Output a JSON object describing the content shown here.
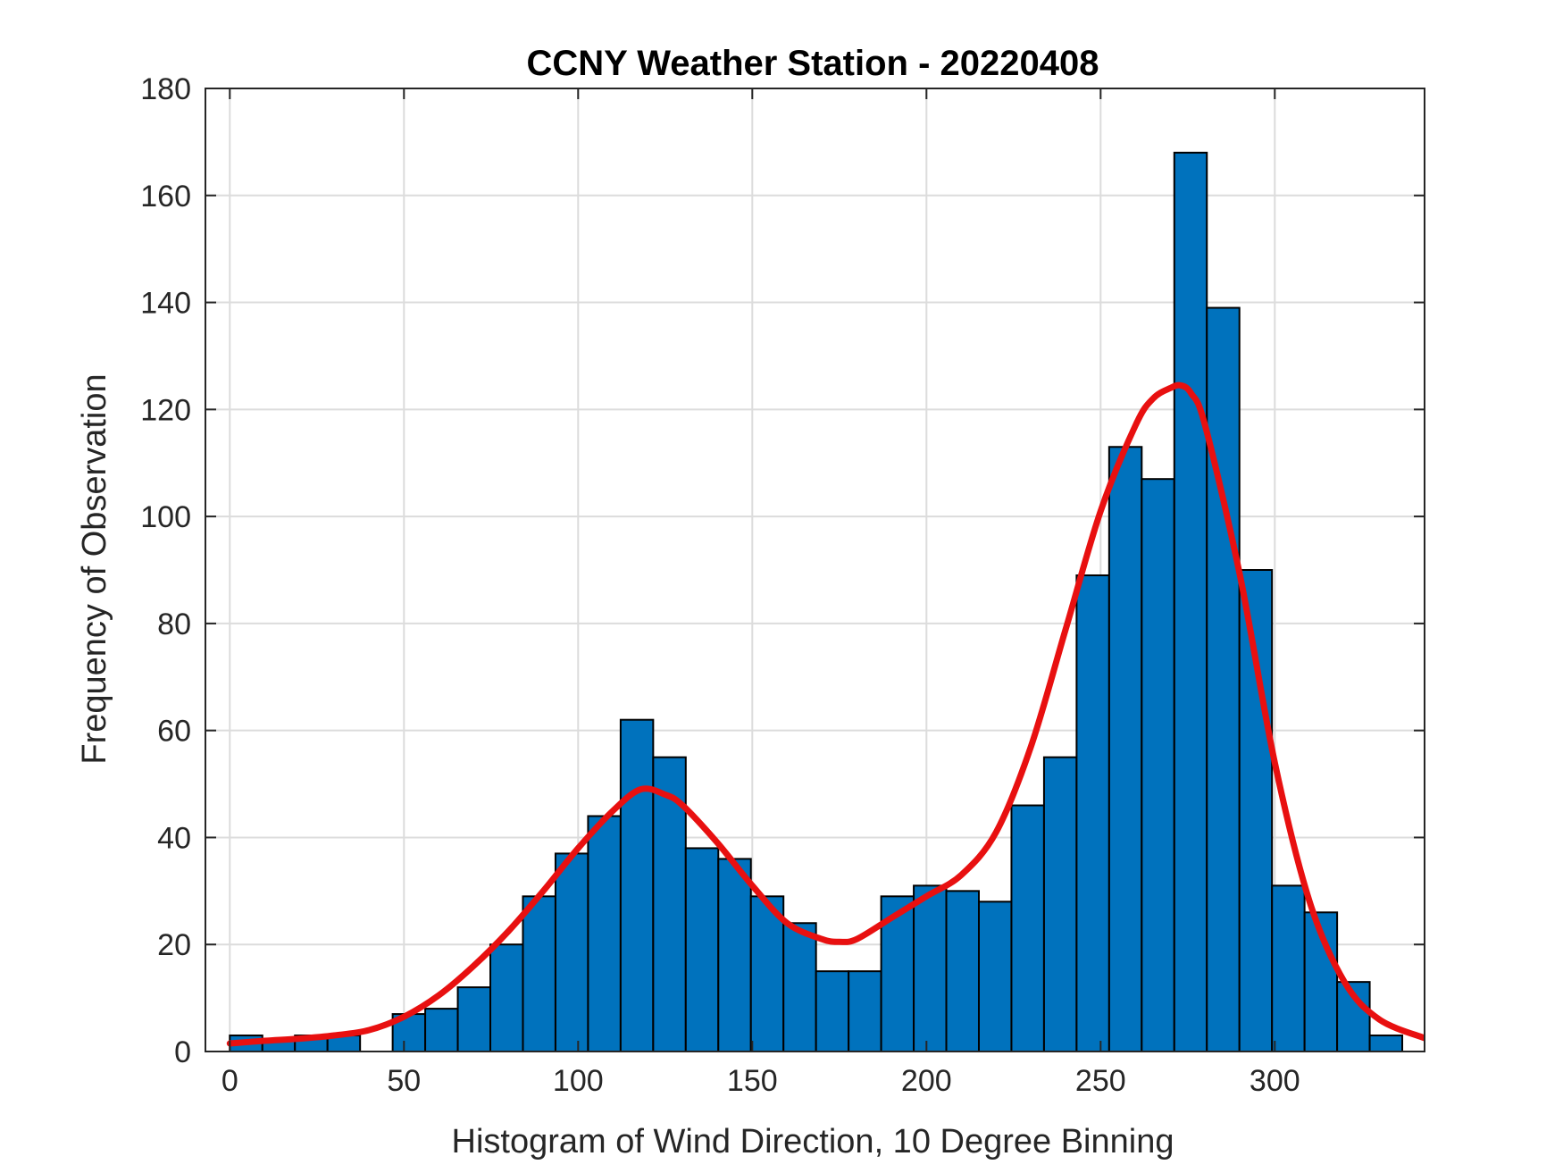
{
  "chart_data": {
    "type": "bar",
    "title": "CCNY Weather Station - 20220408",
    "xlabel": "Histogram of Wind Direction, 10 Degree Binning",
    "ylabel": "Frequency of Observation",
    "xlim": [
      -7,
      343
    ],
    "ylim": [
      0,
      180
    ],
    "xticks": [
      0,
      50,
      100,
      150,
      200,
      250,
      300
    ],
    "yticks": [
      0,
      20,
      40,
      60,
      80,
      100,
      120,
      140,
      160,
      180
    ],
    "grid": true,
    "bin_width": 9.35,
    "bins": [
      {
        "left": 0.0,
        "value": 3
      },
      {
        "left": 9.35,
        "value": 2
      },
      {
        "left": 18.7,
        "value": 3
      },
      {
        "left": 28.05,
        "value": 3
      },
      {
        "left": 37.4,
        "value": 0
      },
      {
        "left": 46.75,
        "value": 7
      },
      {
        "left": 56.1,
        "value": 8
      },
      {
        "left": 65.45,
        "value": 12
      },
      {
        "left": 74.8,
        "value": 20
      },
      {
        "left": 84.15,
        "value": 29
      },
      {
        "left": 93.5,
        "value": 37
      },
      {
        "left": 102.85,
        "value": 44
      },
      {
        "left": 112.2,
        "value": 62
      },
      {
        "left": 121.55,
        "value": 55
      },
      {
        "left": 130.9,
        "value": 38
      },
      {
        "left": 140.25,
        "value": 36
      },
      {
        "left": 149.6,
        "value": 29
      },
      {
        "left": 158.95,
        "value": 24
      },
      {
        "left": 168.3,
        "value": 15
      },
      {
        "left": 177.65,
        "value": 15
      },
      {
        "left": 187.0,
        "value": 29
      },
      {
        "left": 196.35,
        "value": 31
      },
      {
        "left": 205.7,
        "value": 30
      },
      {
        "left": 215.05,
        "value": 28
      },
      {
        "left": 224.4,
        "value": 46
      },
      {
        "left": 233.75,
        "value": 55
      },
      {
        "left": 243.1,
        "value": 89
      },
      {
        "left": 252.45,
        "value": 113
      },
      {
        "left": 261.8,
        "value": 107
      },
      {
        "left": 271.15,
        "value": 168
      },
      {
        "left": 280.5,
        "value": 139
      },
      {
        "left": 289.85,
        "value": 90
      },
      {
        "left": 299.2,
        "value": 31
      },
      {
        "left": 308.55,
        "value": 26
      },
      {
        "left": 317.9,
        "value": 13
      },
      {
        "left": 327.25,
        "value": 3
      }
    ],
    "fit_curve": {
      "name": "density fit",
      "x": [
        0,
        10,
        20,
        30,
        40,
        50,
        60,
        70,
        80,
        90,
        100,
        110,
        118,
        125,
        130,
        140,
        150,
        160,
        170,
        175,
        180,
        190,
        200,
        210,
        220,
        230,
        240,
        250,
        260,
        265,
        270,
        273,
        276,
        280,
        290,
        300,
        310,
        320,
        330,
        343
      ],
      "y": [
        1.5,
        2,
        2.4,
        3,
        4,
        6.5,
        10.5,
        16,
        22.5,
        30,
        38,
        45,
        49,
        48,
        46,
        39,
        31,
        24,
        21,
        20.5,
        21,
        25,
        29,
        33,
        41,
        57,
        79,
        101,
        117,
        122,
        124,
        124.5,
        123,
        117,
        89,
        54,
        28,
        13,
        6,
        2.5
      ]
    },
    "colors": {
      "bar_fill": "#0072BD",
      "bar_edge": "#000000",
      "curve": "#E81010",
      "grid": "#DCDCDC",
      "axis": "#262626"
    }
  }
}
